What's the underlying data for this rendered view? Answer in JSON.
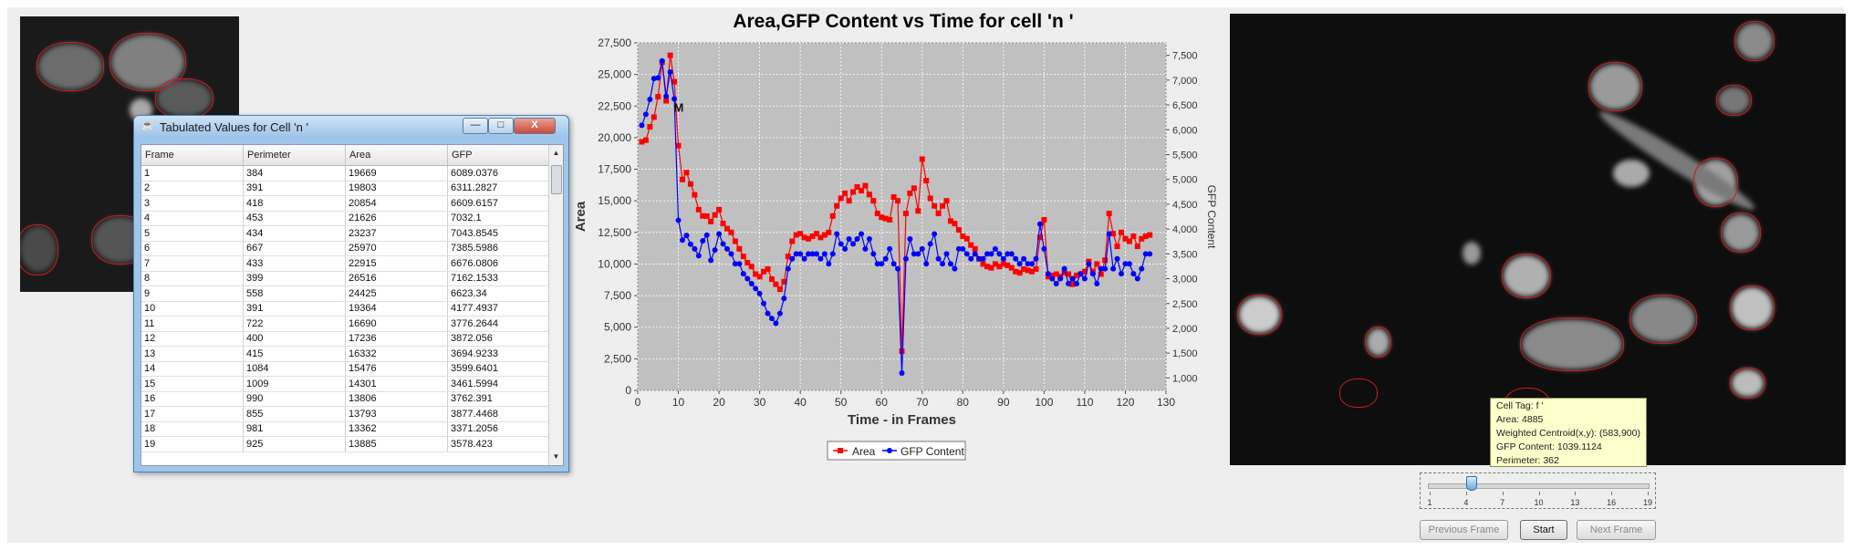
{
  "left_image": {
    "alt": "left cell image"
  },
  "table_window": {
    "title": "Tabulated Values for Cell 'n '",
    "buttons": {
      "minimize": "—",
      "maximize": "□",
      "close": "X"
    },
    "columns": [
      "Frame",
      "Perimeter",
      "Area",
      "GFP"
    ],
    "rows": [
      [
        "1",
        "384",
        "19669",
        "6089.0376"
      ],
      [
        "2",
        "391",
        "19803",
        "6311.2827"
      ],
      [
        "3",
        "418",
        "20854",
        "6609.6157"
      ],
      [
        "4",
        "453",
        "21626",
        "7032.1"
      ],
      [
        "5",
        "434",
        "23237",
        "7043.8545"
      ],
      [
        "6",
        "667",
        "25970",
        "7385.5986"
      ],
      [
        "7",
        "433",
        "22915",
        "6676.0806"
      ],
      [
        "8",
        "399",
        "26516",
        "7162.1533"
      ],
      [
        "9",
        "558",
        "24425",
        "6623.34"
      ],
      [
        "10",
        "391",
        "19364",
        "4177.4937"
      ],
      [
        "11",
        "722",
        "16690",
        "3776.2644"
      ],
      [
        "12",
        "400",
        "17236",
        "3872.056"
      ],
      [
        "13",
        "415",
        "16332",
        "3694.9233"
      ],
      [
        "14",
        "1084",
        "15476",
        "3599.6401"
      ],
      [
        "15",
        "1009",
        "14301",
        "3461.5994"
      ],
      [
        "16",
        "990",
        "13806",
        "3762.391"
      ],
      [
        "17",
        "855",
        "13793",
        "3877.4468"
      ],
      [
        "18",
        "981",
        "13362",
        "3371.2056"
      ],
      [
        "19",
        "925",
        "13885",
        "3578.423"
      ]
    ]
  },
  "chart_data": {
    "type": "line",
    "title": "Area,GFP Content vs Time for cell 'n '",
    "xlabel": "Time - in Frames",
    "ylabel": "Area",
    "y2label": "GFP Content",
    "xlim": [
      0,
      130
    ],
    "ylim": [
      0,
      27500
    ],
    "y2lim": [
      750,
      7750
    ],
    "xticks": [
      "0",
      "10",
      "20",
      "30",
      "40",
      "50",
      "60",
      "70",
      "80",
      "90",
      "100",
      "110",
      "120",
      "130"
    ],
    "yticks": [
      "0",
      "2,500",
      "5,000",
      "7,500",
      "10,000",
      "12,500",
      "15,000",
      "17,500",
      "20,000",
      "22,500",
      "25,000",
      "27,500"
    ],
    "y2ticks": [
      "1,000",
      "1,500",
      "2,000",
      "2,500",
      "3,000",
      "3,500",
      "4,000",
      "4,500",
      "5,000",
      "5,500",
      "6,000",
      "6,500",
      "7,000",
      "7,500"
    ],
    "annotation": "M",
    "background": "#c0c0c0",
    "legend": "bottom",
    "series": [
      {
        "name": "Area",
        "color": "#ff0000",
        "marker": "square",
        "values": [
          19669,
          19803,
          20854,
          21626,
          23237,
          25970,
          22915,
          26516,
          24425,
          19364,
          16690,
          17236,
          16332,
          15476,
          14301,
          13806,
          13793,
          13362,
          13885,
          14300,
          13200,
          12800,
          12500,
          11800,
          11200,
          10600,
          10100,
          9800,
          9200,
          9000,
          9400,
          9600,
          8800,
          8400,
          8000,
          8600,
          10600,
          11800,
          12300,
          12400,
          12100,
          12000,
          12200,
          12400,
          12100,
          12300,
          12500,
          13800,
          14600,
          15200,
          15600,
          15000,
          15700,
          16100,
          15800,
          16200,
          15500,
          15000,
          14000,
          13700,
          13600,
          13500,
          15300,
          15000,
          3100,
          14000,
          15600,
          16000,
          14200,
          18300,
          16600,
          15200,
          14600,
          14000,
          14600,
          15000,
          13400,
          13200,
          12700,
          12200,
          12000,
          11500,
          11200,
          10400,
          10000,
          9800,
          9700,
          10000,
          9800,
          10000,
          9900,
          9700,
          9400,
          9300,
          9600,
          9500,
          9400,
          9600,
          12100,
          13500,
          9000,
          9100,
          9200,
          9000,
          9300,
          9200,
          8400,
          9100,
          9200,
          9400,
          10200,
          9400,
          10000,
          9200,
          10300,
          14000,
          12400,
          11400,
          12500,
          12000,
          11800,
          12200,
          11400,
          12000,
          12200,
          12300
        ]
      },
      {
        "name": "GFP Content",
        "color": "#0000ff",
        "marker": "circle",
        "values": [
          6089,
          6311,
          6610,
          7032,
          7044,
          7386,
          6676,
          7162,
          6623,
          4177,
          3776,
          3872,
          3695,
          3600,
          3462,
          3762,
          3877,
          3371,
          3578,
          3900,
          3700,
          3600,
          3500,
          3300,
          3300,
          3100,
          3000,
          2900,
          2800,
          2700,
          2500,
          2300,
          2200,
          2100,
          2300,
          2600,
          3200,
          3400,
          3500,
          3500,
          3400,
          3500,
          3500,
          3500,
          3400,
          3500,
          3300,
          3500,
          3900,
          3700,
          3600,
          3800,
          3700,
          3800,
          3900,
          3600,
          3800,
          3500,
          3300,
          3300,
          3400,
          3600,
          3300,
          3200,
          1100,
          3400,
          3800,
          3500,
          3500,
          3600,
          3300,
          3700,
          3900,
          3400,
          3300,
          3500,
          3300,
          3200,
          3600,
          3600,
          3500,
          3400,
          3500,
          3400,
          3400,
          3500,
          3500,
          3600,
          3500,
          3400,
          3500,
          3500,
          3400,
          3300,
          3400,
          3300,
          3300,
          3400,
          4100,
          3600,
          3100,
          3000,
          2900,
          3000,
          3200,
          2900,
          3000,
          2900,
          3100,
          3000,
          3300,
          3100,
          2900,
          3200,
          3200,
          3900,
          3200,
          3400,
          3100,
          3300,
          3300,
          3100,
          3000,
          3200,
          3500,
          3500
        ]
      }
    ]
  },
  "right_image": {
    "alt": "right cell image"
  },
  "tooltip": {
    "line1": "Cell Tag:  f '",
    "line2": "Area: 4885",
    "line3": "Weighted Centroid(x,y): (583,900)",
    "line4": "GFP Content: 1039.1124",
    "line5": "Perimeter: 362"
  },
  "slider": {
    "labels": [
      "1",
      "4",
      "7",
      "10",
      "13",
      "16",
      "19"
    ],
    "value_fraction": 0.19
  },
  "buttons": {
    "previous": "Previous Frame",
    "start": "Start",
    "next": "Next Frame"
  }
}
